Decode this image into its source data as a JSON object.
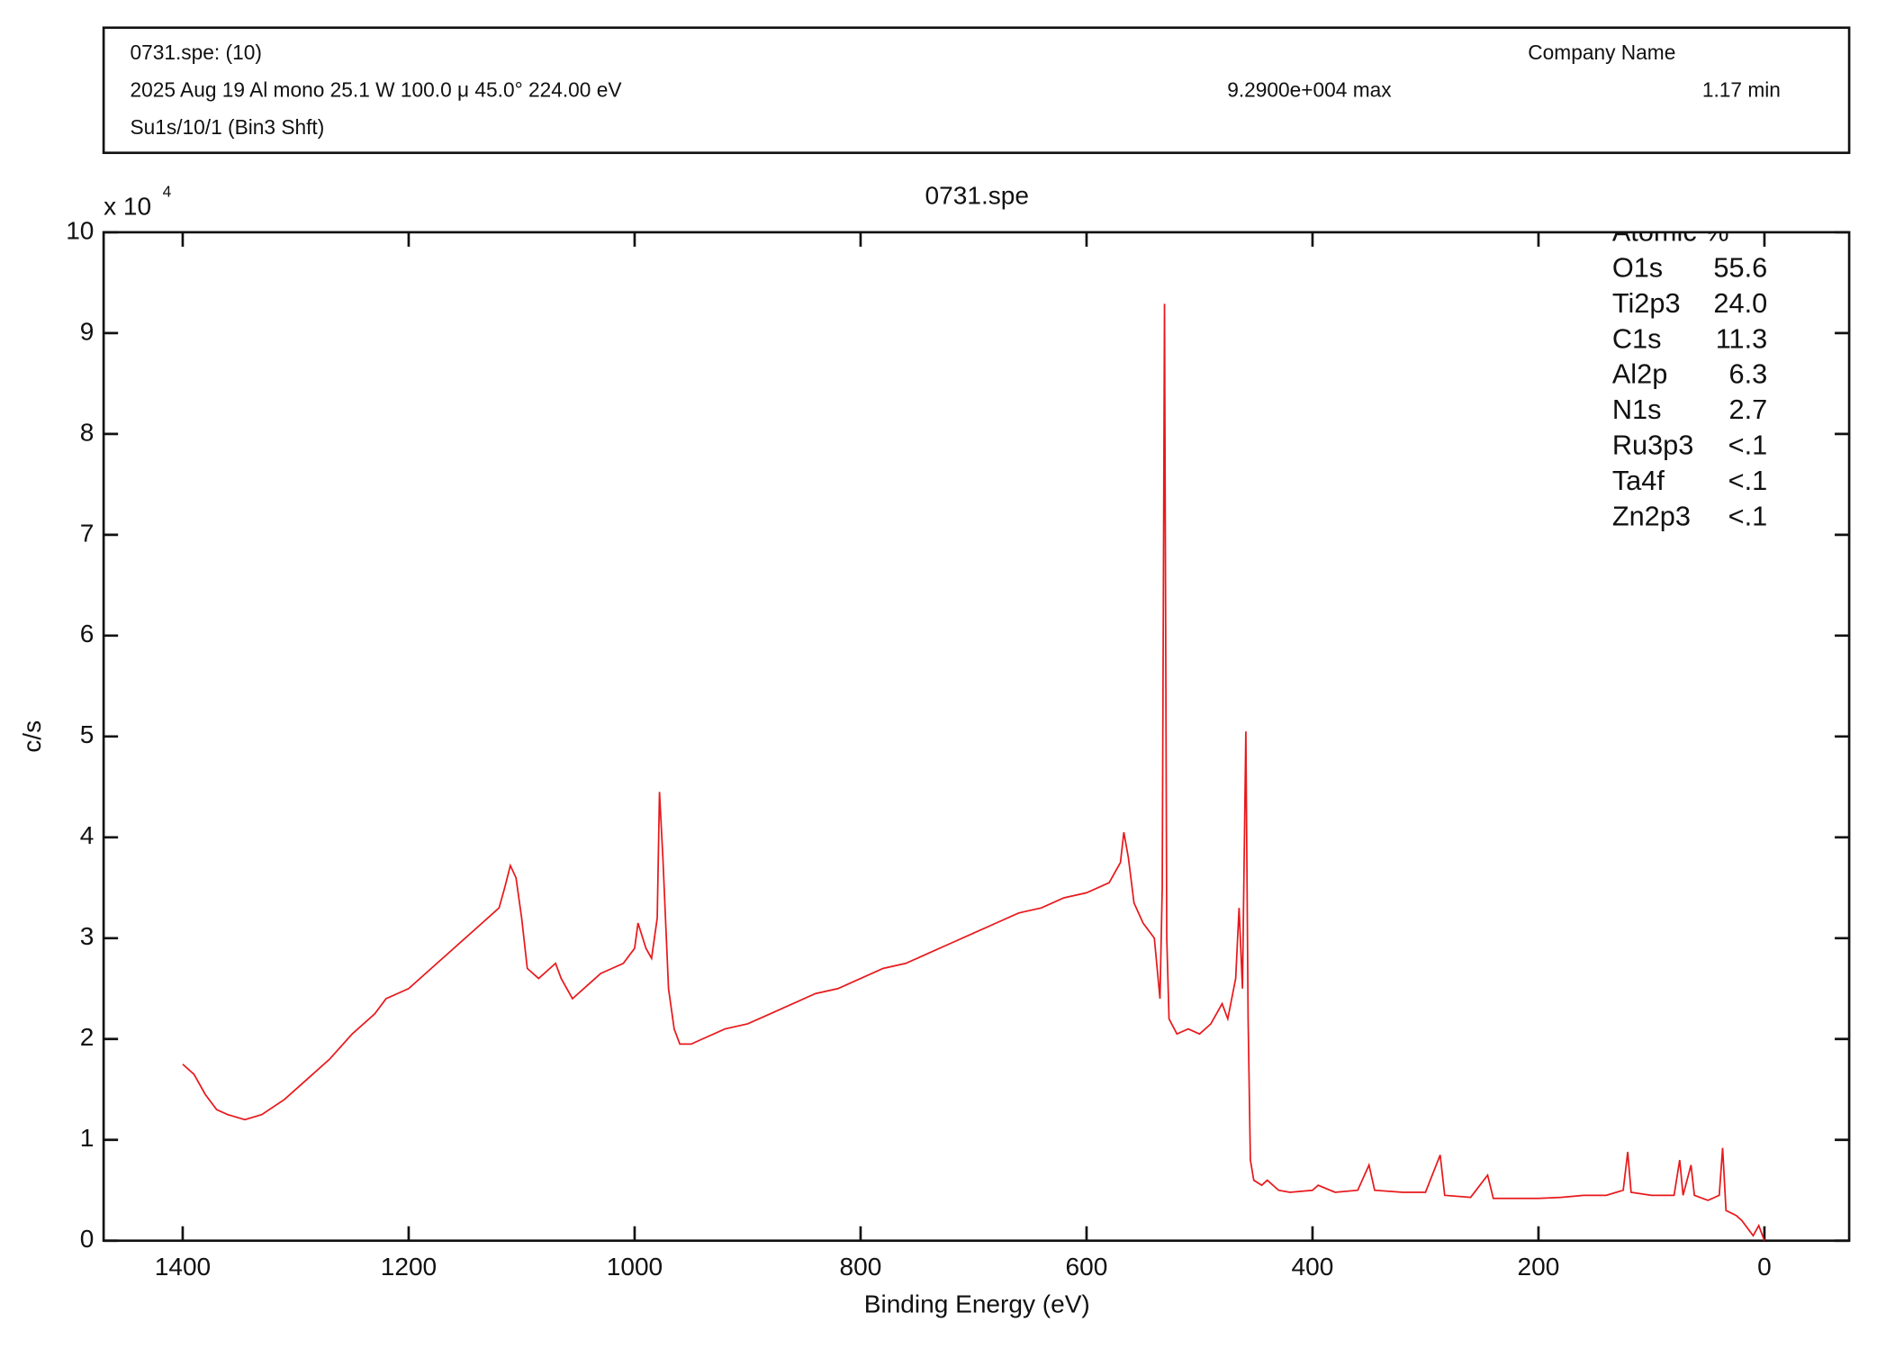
{
  "header": {
    "line1_left": "0731.spe: (10)",
    "line1_right": "Company Name",
    "line2_left": "2025 Aug 19  Al mono  25.1 W  100.0 μ  45.0°  224.00 eV",
    "line2_mid": "9.2900e+004 max",
    "line2_right": "1.17 min"
  },
  "chart_data": {
    "type": "line",
    "title": "0731.spe",
    "x_label": "Binding Energy (eV)",
    "y_label": "c/s",
    "y_multiplier": {
      "base": "x 10",
      "exponent": "4"
    },
    "xlim": [
      1470,
      -75
    ],
    "ylim": [
      0,
      10
    ],
    "xticks": [
      1400,
      1200,
      1000,
      800,
      600,
      400,
      200,
      0
    ],
    "yticks": [
      0,
      1,
      2,
      3,
      4,
      5,
      6,
      7,
      8,
      9,
      10
    ],
    "grid": false,
    "annotation": {
      "title": "Atomic %",
      "rows": [
        {
          "name": "O1s",
          "value": "55.6"
        },
        {
          "name": "Ti2p3",
          "value": "24.0"
        },
        {
          "name": "C1s",
          "value": "11.3"
        },
        {
          "name": "Al2p",
          "value": "6.3"
        },
        {
          "name": "N1s",
          "value": "2.7"
        },
        {
          "name": "Ru3p3",
          "value": "<.1"
        },
        {
          "name": "Ta4f",
          "value": "<.1"
        },
        {
          "name": "Zn2p3",
          "value": "<.1"
        }
      ]
    },
    "x": [
      1400,
      1390,
      1380,
      1370,
      1360,
      1345,
      1330,
      1310,
      1290,
      1270,
      1250,
      1230,
      1220,
      1210,
      1200,
      1180,
      1160,
      1140,
      1120,
      1115,
      1110,
      1105,
      1100,
      1095,
      1085,
      1075,
      1070,
      1065,
      1055,
      1050,
      1040,
      1030,
      1020,
      1010,
      1000,
      997,
      990,
      985,
      980,
      978,
      975,
      970,
      965,
      960,
      950,
      940,
      920,
      900,
      880,
      860,
      840,
      820,
      800,
      780,
      760,
      740,
      720,
      700,
      680,
      660,
      640,
      620,
      600,
      580,
      570,
      567,
      563,
      558,
      550,
      540,
      535,
      533,
      531,
      529,
      527,
      520,
      510,
      500,
      490,
      480,
      475,
      468,
      465,
      462,
      459,
      457,
      455,
      452,
      445,
      440,
      430,
      420,
      400,
      395,
      380,
      360,
      350,
      345,
      320,
      300,
      287,
      283,
      260,
      245,
      240,
      220,
      200,
      180,
      160,
      140,
      125,
      121,
      118,
      100,
      80,
      75,
      72,
      65,
      62,
      50,
      40,
      37,
      34,
      25,
      20,
      10,
      5,
      0
    ],
    "series": [
      {
        "name": "Su1s/10/1 (Bin3 Shft)",
        "color": "#e8191c",
        "values": [
          1.75,
          1.65,
          1.45,
          1.3,
          1.25,
          1.2,
          1.25,
          1.4,
          1.6,
          1.8,
          2.05,
          2.25,
          2.4,
          2.45,
          2.5,
          2.7,
          2.9,
          3.1,
          3.3,
          3.5,
          3.72,
          3.6,
          3.2,
          2.7,
          2.6,
          2.7,
          2.75,
          2.6,
          2.4,
          2.45,
          2.55,
          2.65,
          2.7,
          2.75,
          2.9,
          3.15,
          2.9,
          2.8,
          3.2,
          4.45,
          3.8,
          2.5,
          2.1,
          1.95,
          1.95,
          2.0,
          2.1,
          2.15,
          2.25,
          2.35,
          2.45,
          2.5,
          2.6,
          2.7,
          2.75,
          2.85,
          2.95,
          3.05,
          3.15,
          3.25,
          3.3,
          3.4,
          3.45,
          3.55,
          3.75,
          4.05,
          3.8,
          3.35,
          3.15,
          3.0,
          2.4,
          3.5,
          9.29,
          3.0,
          2.2,
          2.05,
          2.1,
          2.05,
          2.15,
          2.35,
          2.2,
          2.6,
          3.3,
          2.5,
          5.05,
          2.2,
          0.8,
          0.6,
          0.55,
          0.6,
          0.5,
          0.48,
          0.5,
          0.55,
          0.48,
          0.5,
          0.75,
          0.5,
          0.48,
          0.48,
          0.85,
          0.45,
          0.43,
          0.65,
          0.42,
          0.42,
          0.42,
          0.43,
          0.45,
          0.45,
          0.5,
          0.88,
          0.48,
          0.45,
          0.45,
          0.8,
          0.45,
          0.75,
          0.45,
          0.4,
          0.45,
          0.92,
          0.3,
          0.25,
          0.2,
          0.05,
          0.15,
          0
        ]
      }
    ]
  }
}
